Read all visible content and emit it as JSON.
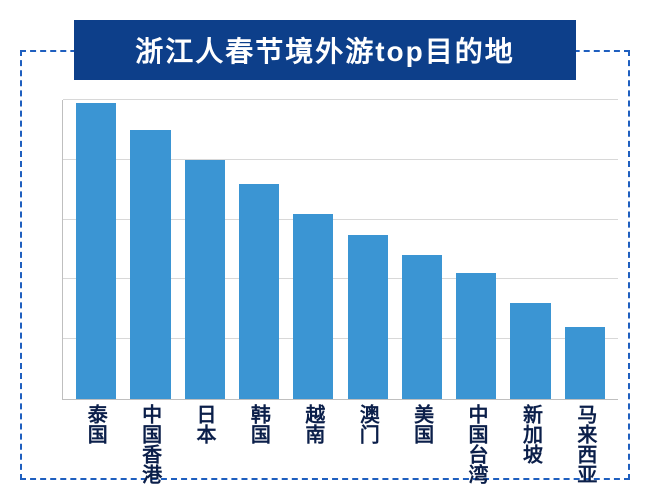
{
  "title": "浙江人春节境外游top目的地",
  "colors": {
    "border_dash": "#1f5fbf",
    "title_bg": "#0d3f8a",
    "title_text": "#ffffff",
    "bar": "#3b95d3",
    "axis": "#bfbfbf",
    "grid": "#d8d8d8",
    "label": "#0b1f4a"
  },
  "chart": {
    "type": "bar",
    "ymin": 0,
    "ymax": 100,
    "gridlines": [
      20,
      40,
      60,
      80,
      100
    ],
    "categories": [
      "泰国",
      "中国香港",
      "日本",
      "韩国",
      "越南",
      "澳门",
      "美国",
      "中国台湾",
      "新加坡",
      "马来西亚"
    ],
    "values": [
      99,
      90,
      80,
      72,
      62,
      55,
      48,
      42,
      32,
      24
    ]
  }
}
